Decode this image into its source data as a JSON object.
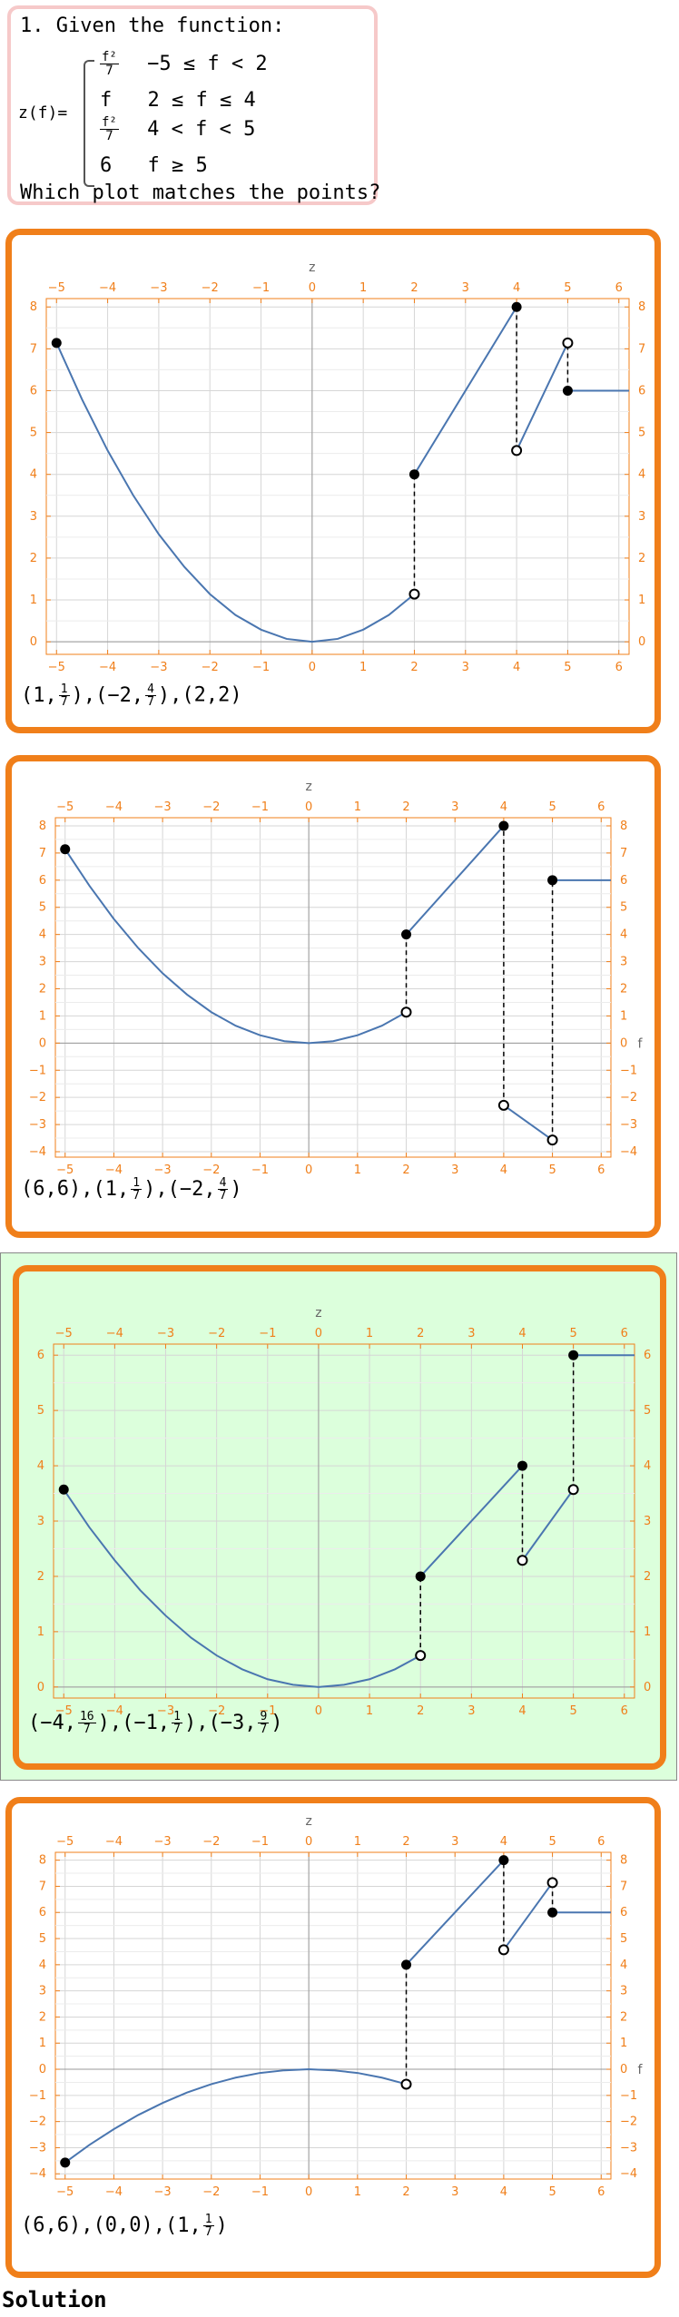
{
  "question": {
    "title": "1. Given the function:",
    "fn_name": "z(f)=",
    "pieces": [
      {
        "expr_num": "f²",
        "expr_den": "7",
        "condition": "−5 ≤ f < 2"
      },
      {
        "expr": "f",
        "condition": "2 ≤ f ≤ 4"
      },
      {
        "expr_num": "f²",
        "expr_den": "7",
        "condition": "4 < f < 5"
      },
      {
        "expr": "6",
        "condition": "f ≥ 5"
      }
    ],
    "prompt": "Which plot matches the points?"
  },
  "colors": {
    "option_border": "#f07f1a",
    "axis_orange": "#f07f1a",
    "curve_blue": "#4a76b0",
    "correct_bg": "#dcffdc",
    "question_border": "#f6c9c9"
  },
  "options": [
    {
      "points_text": [
        {
          "x": "1",
          "y_num": "1",
          "y_den": "7"
        },
        {
          "x": "-2",
          "y_num": "4",
          "y_den": "7"
        },
        {
          "x": "2",
          "y": "2"
        }
      ],
      "correct": false,
      "chart_data": {
        "type": "line",
        "title": "z",
        "xlabel": "",
        "ylabel": "",
        "xlim": [
          -5.2,
          6.2
        ],
        "ylim": [
          -0.3,
          8.2
        ],
        "x_ticks": [
          -5,
          -4,
          -3,
          -2,
          -1,
          0,
          1,
          2,
          3,
          4,
          5,
          6
        ],
        "y_ticks": [
          0,
          1,
          2,
          3,
          4,
          5,
          6,
          7,
          8
        ],
        "grid": true,
        "series": [
          {
            "kind": "curve",
            "x": [
              -5,
              -4.5,
              -4,
              -3.5,
              -3,
              -2.5,
              -2,
              -1.5,
              -1,
              -0.5,
              0,
              0.5,
              1,
              1.5,
              2
            ],
            "y": [
              7.14,
              5.79,
              4.57,
              3.5,
              2.57,
              1.79,
              1.14,
              0.64,
              0.29,
              0.07,
              0,
              0.07,
              0.29,
              0.64,
              1.14
            ]
          },
          {
            "kind": "curve",
            "x": [
              2,
              4
            ],
            "y": [
              4,
              8
            ]
          },
          {
            "kind": "curve",
            "x": [
              4,
              5
            ],
            "y": [
              4.57,
              7.14
            ]
          },
          {
            "kind": "curve",
            "x": [
              5,
              6.2
            ],
            "y": [
              6,
              6
            ]
          }
        ],
        "dashed": [
          {
            "x": 2,
            "y1": 1.14,
            "y2": 4
          },
          {
            "x": 4,
            "y1": 4.57,
            "y2": 8
          },
          {
            "x": 5,
            "y1": 6,
            "y2": 7.14
          }
        ],
        "filled_points": [
          {
            "x": -5,
            "y": 7.14
          },
          {
            "x": 2,
            "y": 4
          },
          {
            "x": 4,
            "y": 8
          },
          {
            "x": 5,
            "y": 6
          }
        ],
        "open_points": [
          {
            "x": 2,
            "y": 1.14
          },
          {
            "x": 4,
            "y": 4.57
          },
          {
            "x": 5,
            "y": 7.14
          }
        ]
      }
    },
    {
      "points_text": [
        {
          "x": "6",
          "y": "6"
        },
        {
          "x": "1",
          "y_num": "1",
          "y_den": "7"
        },
        {
          "x": "-2",
          "y_num": "4",
          "y_den": "7"
        }
      ],
      "correct": false,
      "axis_end_label": "f",
      "chart_data": {
        "type": "line",
        "title": "z",
        "xlabel": "f",
        "ylabel": "",
        "xlim": [
          -5.2,
          6.2
        ],
        "ylim": [
          -4.2,
          8.3
        ],
        "x_ticks": [
          -5,
          -4,
          -3,
          -2,
          -1,
          0,
          1,
          2,
          3,
          4,
          5,
          6
        ],
        "y_ticks": [
          -4,
          -3,
          -2,
          -1,
          0,
          1,
          2,
          3,
          4,
          5,
          6,
          7,
          8
        ],
        "grid": true,
        "series": [
          {
            "kind": "curve",
            "x": [
              -5,
              -4.5,
              -4,
              -3.5,
              -3,
              -2.5,
              -2,
              -1.5,
              -1,
              -0.5,
              0,
              0.5,
              1,
              1.5,
              2
            ],
            "y": [
              7.14,
              5.79,
              4.57,
              3.5,
              2.57,
              1.79,
              1.14,
              0.64,
              0.29,
              0.07,
              0,
              0.07,
              0.29,
              0.64,
              1.14
            ]
          },
          {
            "kind": "curve",
            "x": [
              2,
              4
            ],
            "y": [
              4,
              8
            ]
          },
          {
            "kind": "curve",
            "x": [
              4,
              5
            ],
            "y": [
              -2.29,
              -3.57
            ]
          },
          {
            "kind": "curve",
            "x": [
              5,
              6.2
            ],
            "y": [
              6,
              6
            ]
          }
        ],
        "dashed": [
          {
            "x": 2,
            "y1": 1.14,
            "y2": 4
          },
          {
            "x": 4,
            "y1": -2.29,
            "y2": 8
          },
          {
            "x": 5,
            "y1": -3.57,
            "y2": 6
          }
        ],
        "filled_points": [
          {
            "x": -5,
            "y": 7.14
          },
          {
            "x": 2,
            "y": 4
          },
          {
            "x": 4,
            "y": 8
          },
          {
            "x": 5,
            "y": 6
          }
        ],
        "open_points": [
          {
            "x": 2,
            "y": 1.14
          },
          {
            "x": 4,
            "y": -2.29
          },
          {
            "x": 5,
            "y": -3.57
          }
        ]
      }
    },
    {
      "points_text": [
        {
          "x": "-4",
          "y_num": "16",
          "y_den": "7"
        },
        {
          "x": "-1",
          "y_num": "1",
          "y_den": "7"
        },
        {
          "x": "-3",
          "y_num": "9",
          "y_den": "7"
        }
      ],
      "correct": true,
      "chart_data": {
        "type": "line",
        "title": "z",
        "xlabel": "",
        "ylabel": "",
        "xlim": [
          -5.2,
          6.2
        ],
        "ylim": [
          -0.2,
          6.2
        ],
        "x_ticks": [
          -5,
          -4,
          -3,
          -2,
          -1,
          0,
          1,
          2,
          3,
          4,
          5,
          6
        ],
        "y_ticks": [
          0,
          1,
          2,
          3,
          4,
          5,
          6
        ],
        "grid": true,
        "series": [
          {
            "kind": "curve",
            "x": [
              -5,
              -4.5,
              -4,
              -3.5,
              -3,
              -2.5,
              -2,
              -1.5,
              -1,
              -0.5,
              0,
              0.5,
              1,
              1.5,
              2
            ],
            "y": [
              3.57,
              2.89,
              2.29,
              1.75,
              1.29,
              0.89,
              0.57,
              0.32,
              0.14,
              0.04,
              0,
              0.04,
              0.14,
              0.32,
              0.57
            ]
          },
          {
            "kind": "curve",
            "x": [
              2,
              4
            ],
            "y": [
              2,
              4
            ]
          },
          {
            "kind": "curve",
            "x": [
              4,
              5
            ],
            "y": [
              2.29,
              3.57
            ]
          },
          {
            "kind": "curve",
            "x": [
              5,
              6.2
            ],
            "y": [
              6,
              6
            ]
          }
        ],
        "dashed": [
          {
            "x": 2,
            "y1": 0.57,
            "y2": 2
          },
          {
            "x": 4,
            "y1": 2.29,
            "y2": 4
          },
          {
            "x": 5,
            "y1": 3.57,
            "y2": 6
          }
        ],
        "filled_points": [
          {
            "x": -5,
            "y": 3.57
          },
          {
            "x": 2,
            "y": 2
          },
          {
            "x": 4,
            "y": 4
          },
          {
            "x": 5,
            "y": 6
          }
        ],
        "open_points": [
          {
            "x": 2,
            "y": 0.57
          },
          {
            "x": 4,
            "y": 2.29
          },
          {
            "x": 5,
            "y": 3.57
          }
        ]
      }
    },
    {
      "points_text": [
        {
          "x": "6",
          "y": "6"
        },
        {
          "x": "0",
          "y": "0"
        },
        {
          "x": "1",
          "y_num": "1",
          "y_den": "7"
        }
      ],
      "correct": false,
      "axis_end_label": "f",
      "chart_data": {
        "type": "line",
        "title": "z",
        "xlabel": "f",
        "ylabel": "",
        "xlim": [
          -5.2,
          6.2
        ],
        "ylim": [
          -4.2,
          8.3
        ],
        "x_ticks": [
          -5,
          -4,
          -3,
          -2,
          -1,
          0,
          1,
          2,
          3,
          4,
          5,
          6
        ],
        "y_ticks": [
          -4,
          -3,
          -2,
          -1,
          0,
          1,
          2,
          3,
          4,
          5,
          6,
          7,
          8
        ],
        "grid": true,
        "series": [
          {
            "kind": "curve",
            "x": [
              -5,
              -4.5,
              -4,
              -3.5,
              -3,
              -2.5,
              -2,
              -1.5,
              -1,
              -0.5,
              0,
              0.5,
              1,
              1.5,
              2
            ],
            "y": [
              -3.57,
              -2.89,
              -2.29,
              -1.75,
              -1.29,
              -0.89,
              -0.57,
              -0.32,
              -0.14,
              -0.04,
              0,
              -0.04,
              -0.14,
              -0.32,
              -0.57
            ]
          },
          {
            "kind": "curve",
            "x": [
              2,
              4
            ],
            "y": [
              4,
              8
            ]
          },
          {
            "kind": "curve",
            "x": [
              4,
              5
            ],
            "y": [
              4.57,
              7.14
            ]
          },
          {
            "kind": "curve",
            "x": [
              5,
              6.2
            ],
            "y": [
              6,
              6
            ]
          }
        ],
        "dashed": [
          {
            "x": 2,
            "y1": -0.57,
            "y2": 4
          },
          {
            "x": 4,
            "y1": 4.57,
            "y2": 8
          },
          {
            "x": 5,
            "y1": 6,
            "y2": 7.14
          }
        ],
        "filled_points": [
          {
            "x": -5,
            "y": -3.57
          },
          {
            "x": 2,
            "y": 4
          },
          {
            "x": 4,
            "y": 8
          },
          {
            "x": 5,
            "y": 6
          }
        ],
        "open_points": [
          {
            "x": 2,
            "y": -0.57
          },
          {
            "x": 4,
            "y": 4.57
          },
          {
            "x": 5,
            "y": 7.14
          }
        ]
      }
    }
  ],
  "solution_label": "Solution"
}
